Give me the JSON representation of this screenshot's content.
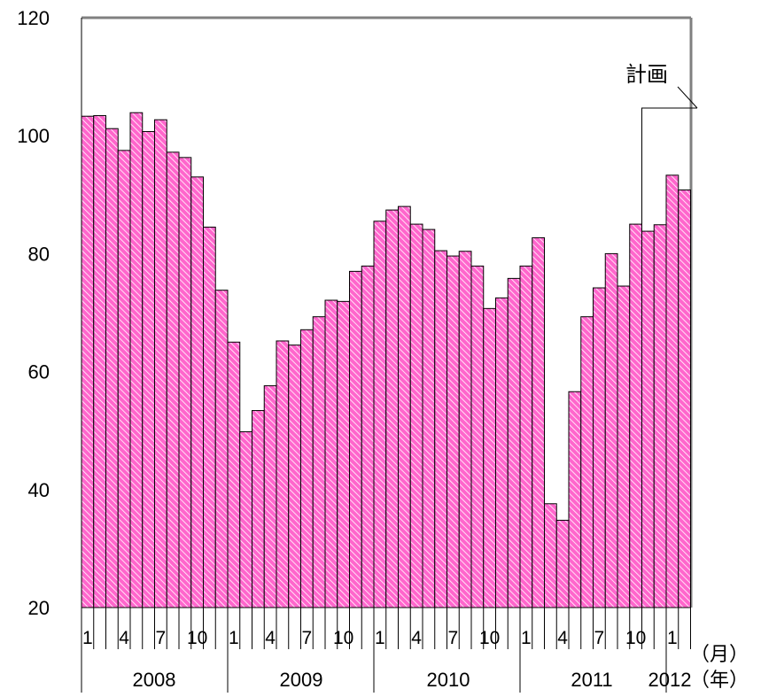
{
  "chart_data": {
    "type": "bar",
    "title": "",
    "xlabel": "",
    "ylabel": "",
    "ylim": [
      20,
      120
    ],
    "yticks": [
      "20",
      "40",
      "60",
      "80",
      "100",
      "120"
    ],
    "grid": false,
    "bar_color": "#ff66cc",
    "bar_hatch_color": "#ffffff",
    "frame_color": "#808080",
    "month_ticks": [
      "1",
      "4",
      "7",
      "10",
      "1",
      "4",
      "7",
      "10",
      "1",
      "4",
      "7",
      "10",
      "1",
      "4",
      "7",
      "10",
      "1"
    ],
    "years": [
      "2008",
      "2009",
      "2010",
      "2011",
      "2012"
    ],
    "unit_month": "（月）",
    "unit_year": "（年）",
    "plan_label": "計画",
    "categories": [
      "2008-01",
      "2008-02",
      "2008-03",
      "2008-04",
      "2008-05",
      "2008-06",
      "2008-07",
      "2008-08",
      "2008-09",
      "2008-10",
      "2008-11",
      "2008-12",
      "2009-01",
      "2009-02",
      "2009-03",
      "2009-04",
      "2009-05",
      "2009-06",
      "2009-07",
      "2009-08",
      "2009-09",
      "2009-10",
      "2009-11",
      "2009-12",
      "2010-01",
      "2010-02",
      "2010-03",
      "2010-04",
      "2010-05",
      "2010-06",
      "2010-07",
      "2010-08",
      "2010-09",
      "2010-10",
      "2010-11",
      "2010-12",
      "2011-01",
      "2011-02",
      "2011-03",
      "2011-04",
      "2011-05",
      "2011-06",
      "2011-07",
      "2011-08",
      "2011-09",
      "2011-10",
      "2011-11",
      "2011-12",
      "2012-01",
      "2012-02"
    ],
    "values": [
      103.3,
      103.4,
      101.2,
      97.5,
      103.9,
      100.7,
      102.7,
      97.2,
      96.3,
      93.0,
      84.5,
      73.8,
      65.0,
      49.8,
      53.4,
      57.6,
      65.2,
      64.5,
      67.1,
      69.3,
      72.1,
      71.9,
      77.0,
      77.9,
      85.5,
      87.4,
      88.0,
      85.0,
      84.1,
      80.5,
      79.6,
      80.4,
      77.9,
      70.7,
      72.5,
      75.8,
      77.9,
      82.7,
      37.6,
      34.8,
      56.6,
      69.3,
      74.2,
      80.0,
      74.5,
      85.0,
      83.8,
      84.9,
      93.3,
      90.8
    ],
    "plan_start_index": 46
  }
}
